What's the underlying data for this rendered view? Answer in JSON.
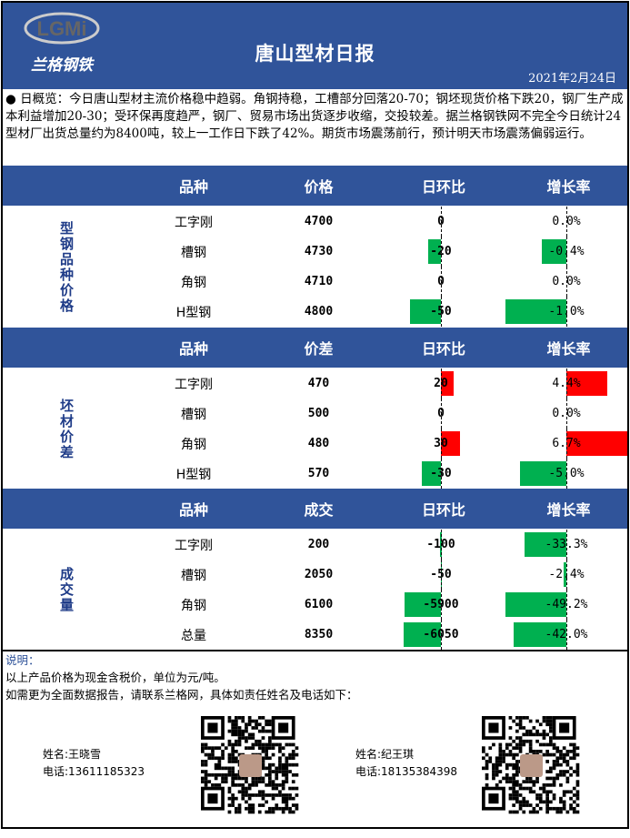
{
  "header": {
    "logo_text": "LGMi",
    "logo_cn": "兰格钢铁",
    "title": "唐山型材日报",
    "date": "2021年2月24日"
  },
  "summary": "● 日概览：今日唐山型材主流价格稳中趋弱。角钢持稳，工槽部分回落20-70；钢坯现货价格下跌20，钢厂生产成本利益增加20-30；受环保再度趋严，钢厂、贸易市场出货逐步收缩，交投较差。据兰格钢铁网不完全今日统计24型材厂出货总量约为8400吨，较上一工作日下跌了42%。期货市场震荡前行，预计明天市场震荡偏弱运行。",
  "colors": {
    "header": "#30549A",
    "up": "#FF0000",
    "down": "#00B050"
  },
  "sections": [
    {
      "label": "型钢品种价格",
      "headers": [
        "品种",
        "价格",
        "日环比",
        "增长率"
      ],
      "rows": [
        {
          "product": "工字刚",
          "value": "4700",
          "change": 0,
          "rate": "0.0%"
        },
        {
          "product": "槽钢",
          "value": "4730",
          "change": -20,
          "rate": "-0.4%"
        },
        {
          "product": "角钢",
          "value": "4710",
          "change": 0,
          "rate": "0.0%"
        },
        {
          "product": "H型钢",
          "value": "4800",
          "change": -50,
          "rate": "-1.0%"
        }
      ]
    },
    {
      "label": "坯材价差",
      "headers": [
        "品种",
        "价差",
        "日环比",
        "增长率"
      ],
      "rows": [
        {
          "product": "工字刚",
          "value": "470",
          "change": 20,
          "rate": "4.4%"
        },
        {
          "product": "槽钢",
          "value": "500",
          "change": 0,
          "rate": "0.0%"
        },
        {
          "product": "角钢",
          "value": "480",
          "change": 30,
          "rate": "6.7%"
        },
        {
          "product": "H型钢",
          "value": "570",
          "change": -30,
          "rate": "-5.0%"
        }
      ]
    },
    {
      "label": "成交量",
      "headers": [
        "品种",
        "成交",
        "日环比",
        "增长率"
      ],
      "rows": [
        {
          "product": "工字刚",
          "value": "200",
          "change": -100,
          "rate": "-33.3%"
        },
        {
          "product": "槽钢",
          "value": "2050",
          "change": -50,
          "rate": "-2.4%"
        },
        {
          "product": "角钢",
          "value": "6100",
          "change": -5900,
          "rate": "-49.2%"
        },
        {
          "product": "总量",
          "value": "8350",
          "change": -6050,
          "rate": "-42.0%"
        }
      ]
    }
  ],
  "notes": {
    "heading": "说明：",
    "line1": "以上产品价格为现金含税价，单位为元/吨。",
    "line2": "如需更为全面数据报告，请联系兰格网，具体如责任姓名及电话如下：",
    "contacts": [
      {
        "name": "姓名:王晓雪",
        "phone": "电话:13611185323"
      },
      {
        "name": "姓名:纪王琪",
        "phone": "电话:18135384398"
      }
    ]
  }
}
